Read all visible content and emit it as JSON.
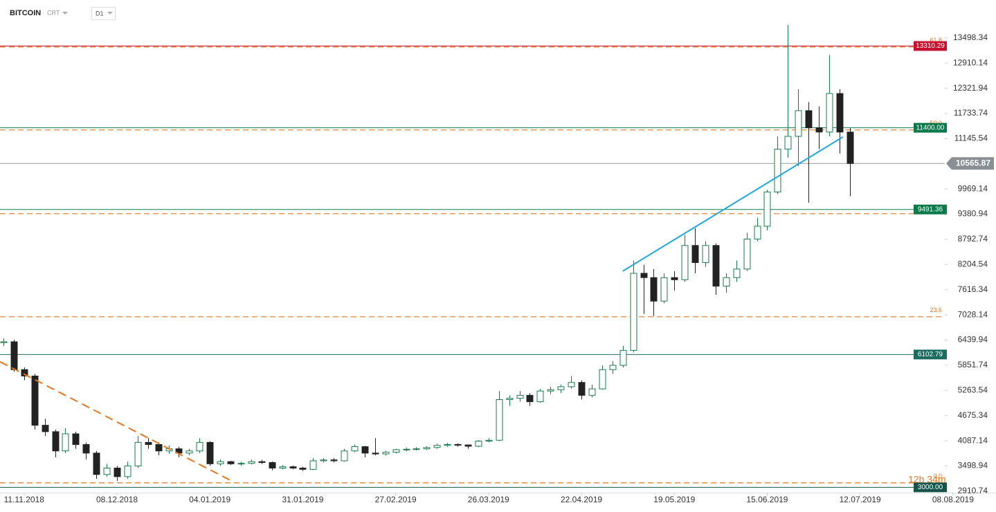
{
  "chart_data": {
    "type": "candlestick",
    "title": "BITCOIN",
    "instrument_type": "CRT",
    "timeframe": "D1",
    "countdown": "12h 34m",
    "current_price": 10565.87,
    "up_color": "#1a7a4c",
    "down_color": "#222222",
    "ylim": [
      2860,
      13900
    ],
    "yticks": [
      2910.74,
      3498.94,
      4087.14,
      4675.34,
      5263.54,
      5851.74,
      6439.94,
      7028.14,
      7616.34,
      8204.54,
      8792.74,
      9380.94,
      9969.14,
      11145.54,
      11733.74,
      12321.94,
      12910.14,
      13498.34
    ],
    "xlim": [
      -7,
      282.5
    ],
    "xticks": [
      {
        "value": 0,
        "label": "11.11.2018"
      },
      {
        "value": 27,
        "label": "08.12.2018"
      },
      {
        "value": 54,
        "label": "04.01.2019"
      },
      {
        "value": 81,
        "label": "31.01.2019"
      },
      {
        "value": 108,
        "label": "27.02.2019"
      },
      {
        "value": 135,
        "label": "26.03.2019"
      },
      {
        "value": 162,
        "label": "22.04.2019"
      },
      {
        "value": 189,
        "label": "19.05.2019"
      },
      {
        "value": 216,
        "label": "15.06.2019"
      },
      {
        "value": 243,
        "label": "12.07.2019"
      },
      {
        "value": 270,
        "label": "08.08.2019"
      }
    ],
    "x": [
      -6,
      -3,
      0,
      3,
      6,
      9,
      12,
      15,
      18,
      21,
      24,
      27,
      30,
      33,
      36,
      39,
      42,
      45,
      48,
      51,
      54,
      57,
      60,
      63,
      66,
      69,
      72,
      75,
      78,
      81,
      84,
      87,
      90,
      93,
      96,
      99,
      102,
      105,
      108,
      111,
      114,
      117,
      120,
      123,
      126,
      129,
      132,
      135,
      138,
      141,
      144,
      147,
      150,
      153,
      156,
      159,
      162,
      165,
      168,
      171,
      174,
      177,
      180,
      183,
      186,
      189,
      192,
      195,
      198,
      201,
      204,
      207,
      210,
      213,
      216,
      219,
      222,
      225,
      228,
      231,
      234,
      237,
      240
    ],
    "open": [
      6380,
      6400,
      5750,
      5600,
      4450,
      4300,
      3850,
      4250,
      4000,
      3800,
      3300,
      3450,
      3250,
      3500,
      4050,
      4000,
      3850,
      3900,
      3800,
      3850,
      4050,
      3550,
      3600,
      3550,
      3560,
      3600,
      3580,
      3450,
      3480,
      3450,
      3420,
      3620,
      3640,
      3620,
      3850,
      3950,
      3800,
      3780,
      3820,
      3880,
      3890,
      3900,
      3930,
      3980,
      4000,
      3990,
      3960,
      4080,
      4100,
      5050,
      5080,
      5150,
      5000,
      5250,
      5280,
      5350,
      5450,
      5150,
      5300,
      5750,
      5850,
      6200,
      8000,
      7900,
      7350,
      7900,
      7850,
      8650,
      8250,
      8650,
      7700,
      7900,
      8100,
      8800,
      9100,
      9900,
      10900,
      11200,
      11800,
      11400,
      11300,
      12200,
      11300
    ],
    "high": [
      6480,
      6450,
      5800,
      5650,
      4600,
      4350,
      4380,
      4300,
      4050,
      3850,
      3550,
      3500,
      3600,
      4200,
      4150,
      4050,
      3980,
      3950,
      3900,
      4150,
      4080,
      3650,
      3620,
      3600,
      3650,
      3640,
      3600,
      3520,
      3510,
      3480,
      3680,
      3680,
      3680,
      3900,
      4000,
      3970,
      4150,
      3850,
      3900,
      3930,
      3940,
      3960,
      4020,
      4040,
      4030,
      4000,
      4100,
      4150,
      5250,
      5150,
      5250,
      5200,
      5300,
      5350,
      5400,
      5600,
      5500,
      5400,
      5850,
      5950,
      6300,
      8300,
      8200,
      8100,
      8000,
      8050,
      8900,
      9050,
      8750,
      8700,
      8000,
      8300,
      8950,
      9300,
      9950,
      11200,
      13800,
      12300,
      12000,
      11900,
      13100,
      12300,
      11400
    ],
    "low": [
      6300,
      5700,
      5500,
      4350,
      4200,
      3700,
      3800,
      3900,
      3650,
      3200,
      3250,
      3150,
      3200,
      3450,
      3900,
      3750,
      3780,
      3700,
      3750,
      3800,
      3500,
      3500,
      3520,
      3500,
      3530,
      3540,
      3400,
      3420,
      3420,
      3380,
      3400,
      3580,
      3580,
      3600,
      3820,
      3700,
      3750,
      3740,
      3790,
      3840,
      3860,
      3870,
      3900,
      3950,
      3950,
      3900,
      3940,
      4050,
      4080,
      4900,
      5000,
      4900,
      4980,
      5180,
      5200,
      5300,
      5050,
      5100,
      5280,
      5650,
      5800,
      6150,
      7050,
      7000,
      7300,
      7600,
      7800,
      8000,
      8150,
      7500,
      7550,
      7800,
      8050,
      8750,
      9000,
      9850,
      10700,
      10500,
      9650,
      10900,
      11200,
      10800,
      9800
    ],
    "close": [
      6400,
      5750,
      5600,
      4450,
      4300,
      3850,
      4250,
      4000,
      3800,
      3300,
      3450,
      3250,
      3500,
      4050,
      4000,
      3850,
      3900,
      3800,
      3850,
      4050,
      3550,
      3600,
      3550,
      3560,
      3600,
      3580,
      3450,
      3480,
      3450,
      3420,
      3620,
      3640,
      3620,
      3850,
      3950,
      3800,
      3780,
      3820,
      3880,
      3890,
      3900,
      3930,
      3980,
      4000,
      3990,
      3960,
      4080,
      4100,
      5050,
      5080,
      5150,
      5000,
      5250,
      5280,
      5350,
      5450,
      5150,
      5300,
      5750,
      5850,
      6200,
      8000,
      7900,
      7350,
      7900,
      7850,
      8650,
      8250,
      8650,
      7700,
      7900,
      8100,
      8800,
      9100,
      9900,
      10900,
      11200,
      11800,
      11400,
      11300,
      12200,
      11300,
      10566
    ],
    "levels": [
      {
        "value": 13310.29,
        "color": "#c8102e"
      },
      {
        "value": 11400,
        "label": "11400.00",
        "color": "#0b7a4b"
      },
      {
        "value": 9491.36,
        "color": "#0b7a4b"
      },
      {
        "value": 6102.79,
        "color": "#1b6b5e"
      },
      {
        "value": 3000,
        "label": "3000.00",
        "color": "#14544a"
      }
    ],
    "fib_color": "#e8761e",
    "fib_levels": [
      {
        "ratio": "0.0",
        "value": 3105
      },
      {
        "ratio": "23.6",
        "value": 6985
      },
      {
        "ratio": "38.2",
        "value": 9393
      },
      {
        "ratio": "50.0",
        "value": 11349
      },
      {
        "ratio": "61.8",
        "value": 13288
      }
    ],
    "trendlines": [
      {
        "color": "#e8761e",
        "dashed": true,
        "x": [
          -7,
          61
        ],
        "values": [
          5934,
          3121
        ]
      },
      {
        "color": "#1ea7e1",
        "dashed": false,
        "x": [
          174,
          238
        ],
        "values": [
          8051,
          11187
        ]
      }
    ]
  }
}
